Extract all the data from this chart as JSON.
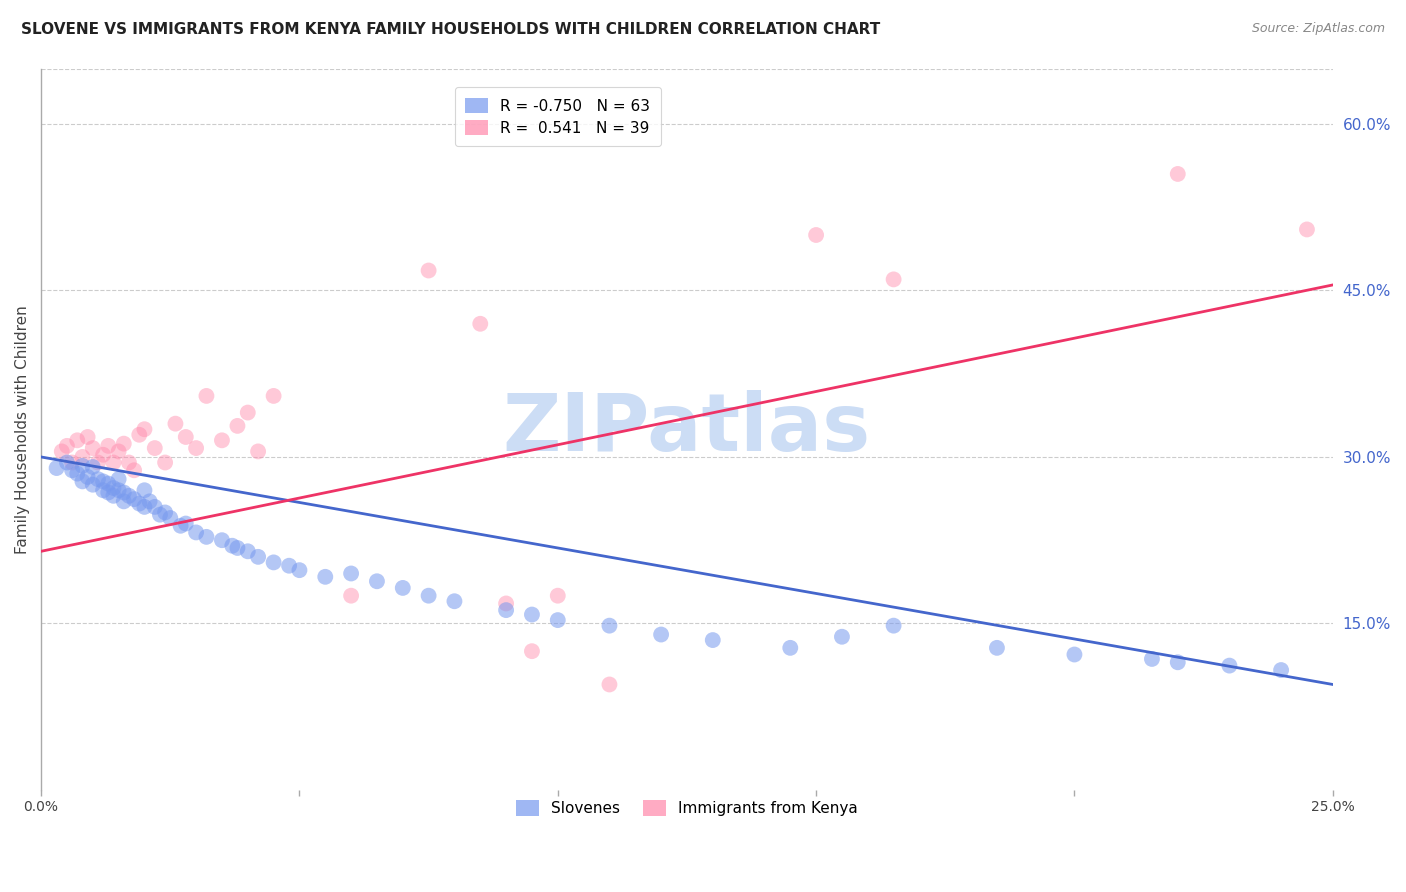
{
  "title": "SLOVENE VS IMMIGRANTS FROM KENYA FAMILY HOUSEHOLDS WITH CHILDREN CORRELATION CHART",
  "source": "Source: ZipAtlas.com",
  "ylabel": "Family Households with Children",
  "xlim": [
    0.0,
    0.25
  ],
  "ylim": [
    0.0,
    0.65
  ],
  "xticks": [
    0.0,
    0.05,
    0.1,
    0.15,
    0.2,
    0.25
  ],
  "xtick_labels": [
    "0.0%",
    "",
    "",
    "",
    "",
    "25.0%"
  ],
  "ytick_positions_right": [
    0.6,
    0.45,
    0.3,
    0.15
  ],
  "ytick_labels_right": [
    "60.0%",
    "45.0%",
    "30.0%",
    "15.0%"
  ],
  "grid_color": "#cccccc",
  "background_color": "#ffffff",
  "legend_r1": "R = -0.750",
  "legend_n1": "N = 63",
  "legend_r2": "R =  0.541",
  "legend_n2": "N = 39",
  "blue_color": "#7799ee",
  "pink_color": "#ff88aa",
  "blue_line_color": "#4466cc",
  "pink_line_color": "#ee3366",
  "watermark": "ZIPatlas",
  "watermark_color": "#ccddf5",
  "slovenes_label": "Slovenes",
  "kenya_label": "Immigrants from Kenya",
  "title_fontsize": 11,
  "source_fontsize": 9,
  "blue_scatter_x": [
    0.003,
    0.005,
    0.006,
    0.007,
    0.008,
    0.008,
    0.009,
    0.01,
    0.01,
    0.011,
    0.012,
    0.012,
    0.013,
    0.013,
    0.014,
    0.014,
    0.015,
    0.015,
    0.016,
    0.016,
    0.017,
    0.018,
    0.019,
    0.02,
    0.02,
    0.021,
    0.022,
    0.023,
    0.024,
    0.025,
    0.027,
    0.028,
    0.03,
    0.032,
    0.035,
    0.037,
    0.038,
    0.04,
    0.042,
    0.045,
    0.048,
    0.05,
    0.055,
    0.06,
    0.065,
    0.07,
    0.075,
    0.08,
    0.09,
    0.095,
    0.1,
    0.11,
    0.12,
    0.13,
    0.145,
    0.155,
    0.165,
    0.185,
    0.2,
    0.215,
    0.22,
    0.23,
    0.24
  ],
  "blue_scatter_y": [
    0.29,
    0.295,
    0.288,
    0.285,
    0.292,
    0.278,
    0.282,
    0.291,
    0.275,
    0.28,
    0.278,
    0.27,
    0.276,
    0.268,
    0.272,
    0.265,
    0.28,
    0.27,
    0.268,
    0.26,
    0.265,
    0.262,
    0.258,
    0.27,
    0.255,
    0.26,
    0.255,
    0.248,
    0.25,
    0.245,
    0.238,
    0.24,
    0.232,
    0.228,
    0.225,
    0.22,
    0.218,
    0.215,
    0.21,
    0.205,
    0.202,
    0.198,
    0.192,
    0.195,
    0.188,
    0.182,
    0.175,
    0.17,
    0.162,
    0.158,
    0.153,
    0.148,
    0.14,
    0.135,
    0.128,
    0.138,
    0.148,
    0.128,
    0.122,
    0.118,
    0.115,
    0.112,
    0.108
  ],
  "pink_scatter_x": [
    0.004,
    0.005,
    0.006,
    0.007,
    0.008,
    0.009,
    0.01,
    0.011,
    0.012,
    0.013,
    0.014,
    0.015,
    0.016,
    0.017,
    0.018,
    0.019,
    0.02,
    0.022,
    0.024,
    0.026,
    0.028,
    0.03,
    0.032,
    0.035,
    0.038,
    0.04,
    0.042,
    0.045,
    0.06,
    0.075,
    0.085,
    0.09,
    0.095,
    0.1,
    0.11,
    0.15,
    0.165,
    0.22,
    0.245
  ],
  "pink_scatter_y": [
    0.305,
    0.31,
    0.295,
    0.315,
    0.3,
    0.318,
    0.308,
    0.295,
    0.302,
    0.31,
    0.295,
    0.305,
    0.312,
    0.295,
    0.288,
    0.32,
    0.325,
    0.308,
    0.295,
    0.33,
    0.318,
    0.308,
    0.355,
    0.315,
    0.328,
    0.34,
    0.305,
    0.355,
    0.175,
    0.468,
    0.42,
    0.168,
    0.125,
    0.175,
    0.095,
    0.5,
    0.46,
    0.555,
    0.505
  ],
  "blue_line_x": [
    0.0,
    0.25
  ],
  "blue_line_y": [
    0.3,
    0.095
  ],
  "pink_line_x": [
    0.0,
    0.25
  ],
  "pink_line_y": [
    0.215,
    0.455
  ]
}
